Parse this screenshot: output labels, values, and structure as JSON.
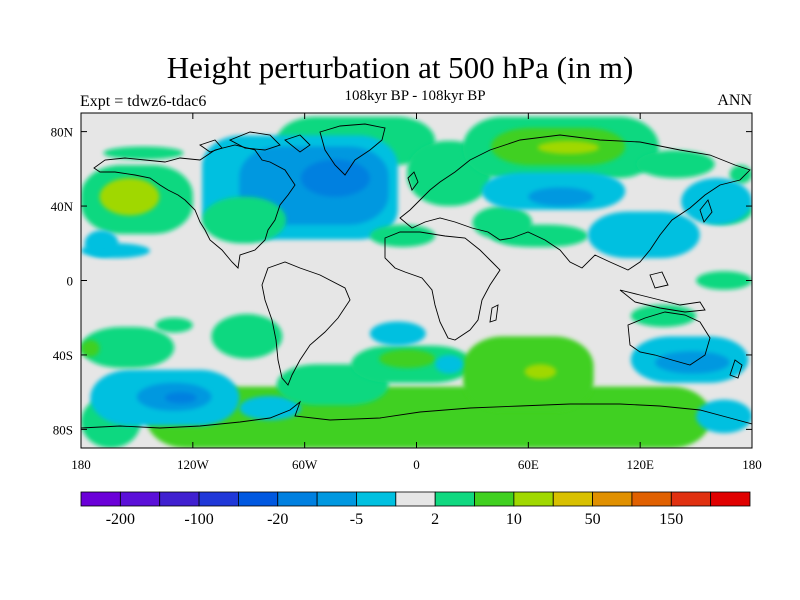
{
  "header": {
    "title": "Height perturbation at 500 hPa (in m)",
    "experiment": "Expt = tdwz6-tdac6",
    "period": "108kyr BP - 108kyr BP",
    "season": "ANN"
  },
  "map": {
    "projection": "cylindrical-equidistant",
    "lon_range": [
      -180,
      180
    ],
    "lat_range": [
      -90,
      90
    ],
    "lon_ticks": [
      {
        "value": -180,
        "label": "180"
      },
      {
        "value": -120,
        "label": "120W"
      },
      {
        "value": -60,
        "label": "60W"
      },
      {
        "value": 0,
        "label": "0"
      },
      {
        "value": 60,
        "label": "60E"
      },
      {
        "value": 120,
        "label": "120E"
      },
      {
        "value": 180,
        "label": "180"
      }
    ],
    "lat_ticks": [
      {
        "value": 80,
        "label": "80N"
      },
      {
        "value": 40,
        "label": "40N"
      },
      {
        "value": 0,
        "label": "0"
      },
      {
        "value": -40,
        "label": "40S"
      },
      {
        "value": -80,
        "label": "80S"
      }
    ],
    "background_color": "#e6e6e6",
    "regions": [
      {
        "lon": [
          -145,
          158
        ],
        "lat": [
          -90,
          -57
        ],
        "color": "#40d020",
        "note": "Antarctic positive"
      },
      {
        "lon": [
          -180,
          -148
        ],
        "lat": [
          -90,
          -62
        ],
        "color": "#10d880"
      },
      {
        "lon": [
          -175,
          -95
        ],
        "lat": [
          -78,
          -48
        ],
        "color": "#00c0e0"
      },
      {
        "lon": [
          -150,
          -110
        ],
        "lat": [
          -70,
          -55
        ],
        "color": "#0098e0"
      },
      {
        "lon": [
          -135,
          -118
        ],
        "lat": [
          -66,
          -60
        ],
        "color": "#0080e0"
      },
      {
        "lon": [
          -95,
          -62
        ],
        "lat": [
          -75,
          -62
        ],
        "color": "#00c0e0"
      },
      {
        "lon": [
          150,
          180
        ],
        "lat": [
          -82,
          -64
        ],
        "color": "#00c0e0"
      },
      {
        "lon": [
          -180,
          -130
        ],
        "lat": [
          -47,
          -25
        ],
        "color": "#10d880"
      },
      {
        "lon": [
          -180,
          -170
        ],
        "lat": [
          -41,
          -32
        ],
        "color": "#40d020"
      },
      {
        "lon": [
          -110,
          -72
        ],
        "lat": [
          -42,
          -18
        ],
        "color": "#10d880"
      },
      {
        "lon": [
          -140,
          -120
        ],
        "lat": [
          -28,
          -20
        ],
        "color": "#10d880"
      },
      {
        "lon": [
          -75,
          -15
        ],
        "lat": [
          -67,
          -45
        ],
        "color": "#10d880"
      },
      {
        "lon": [
          -35,
          30
        ],
        "lat": [
          -55,
          -35
        ],
        "color": "#10d880"
      },
      {
        "lon": [
          -20,
          10
        ],
        "lat": [
          -47,
          -37
        ],
        "color": "#40d020"
      },
      {
        "lon": [
          25,
          95
        ],
        "lat": [
          -70,
          -30
        ],
        "color": "#40d020"
      },
      {
        "lon": [
          58,
          75
        ],
        "lat": [
          -53,
          -45
        ],
        "color": "#a0d800"
      },
      {
        "lon": [
          10,
          25
        ],
        "lat": [
          -50,
          -40
        ],
        "color": "#00c0e0"
      },
      {
        "lon": [
          -25,
          5
        ],
        "lat": [
          -35,
          -22
        ],
        "color": "#00c0e0"
      },
      {
        "lon": [
          115,
          178
        ],
        "lat": [
          -55,
          -30
        ],
        "color": "#00c0e0"
      },
      {
        "lon": [
          128,
          168
        ],
        "lat": [
          -50,
          -38
        ],
        "color": "#0098e0"
      },
      {
        "lon": [
          115,
          150
        ],
        "lat": [
          -25,
          -13
        ],
        "color": "#10d880"
      },
      {
        "lon": [
          150,
          180
        ],
        "lat": [
          -5,
          5
        ],
        "color": "#10d880"
      },
      {
        "lon": [
          -168,
          -125
        ],
        "lat": [
          65,
          72
        ],
        "color": "#10d880"
      },
      {
        "lon": [
          -75,
          10
        ],
        "lat": [
          62,
          88
        ],
        "color": "#10d880"
      },
      {
        "lon": [
          -180,
          -120
        ],
        "lat": [
          25,
          62
        ],
        "color": "#10d880"
      },
      {
        "lon": [
          -170,
          -138
        ],
        "lat": [
          35,
          55
        ],
        "color": "#a0d800"
      },
      {
        "lon": [
          -178,
          -160
        ],
        "lat": [
          13,
          27
        ],
        "color": "#00c0e0"
      },
      {
        "lon": [
          -180,
          -143
        ],
        "lat": [
          12,
          20
        ],
        "color": "#00c0e0"
      },
      {
        "lon": [
          -115,
          -10
        ],
        "lat": [
          22,
          78
        ],
        "color": "#00c0e0"
      },
      {
        "lon": [
          -95,
          -15
        ],
        "lat": [
          30,
          72
        ],
        "color": "#0098e0"
      },
      {
        "lon": [
          -62,
          -25
        ],
        "lat": [
          45,
          65
        ],
        "color": "#0080e0"
      },
      {
        "lon": [
          -115,
          -70
        ],
        "lat": [
          20,
          45
        ],
        "color": "#10d880"
      },
      {
        "lon": [
          -25,
          10
        ],
        "lat": [
          18,
          30
        ],
        "color": "#10d880"
      },
      {
        "lon": [
          -5,
          40
        ],
        "lat": [
          40,
          75
        ],
        "color": "#10d880"
      },
      {
        "lon": [
          25,
          130
        ],
        "lat": [
          55,
          88
        ],
        "color": "#10d880"
      },
      {
        "lon": [
          40,
          112
        ],
        "lat": [
          62,
          82
        ],
        "color": "#40d020"
      },
      {
        "lon": [
          65,
          98
        ],
        "lat": [
          68,
          75
        ],
        "color": "#a0d800"
      },
      {
        "lon": [
          118,
          160
        ],
        "lat": [
          55,
          70
        ],
        "color": "#10d880"
      },
      {
        "lon": [
          168,
          180
        ],
        "lat": [
          52,
          62
        ],
        "color": "#10d880"
      },
      {
        "lon": [
          150,
          180
        ],
        "lat": [
          30,
          45
        ],
        "color": "#10d880"
      },
      {
        "lon": [
          40,
          92
        ],
        "lat": [
          18,
          30
        ],
        "color": "#10d880"
      },
      {
        "lon": [
          30,
          62
        ],
        "lat": [
          22,
          40
        ],
        "color": "#10d880"
      },
      {
        "lon": [
          35,
          112
        ],
        "lat": [
          38,
          58
        ],
        "color": "#00c0e0"
      },
      {
        "lon": [
          60,
          95
        ],
        "lat": [
          40,
          50
        ],
        "color": "#0098e0"
      },
      {
        "lon": [
          92,
          152
        ],
        "lat": [
          12,
          37
        ],
        "color": "#00c0e0"
      },
      {
        "lon": [
          142,
          180
        ],
        "lat": [
          30,
          55
        ],
        "color": "#00c0e0"
      }
    ]
  },
  "colorbar": {
    "colors": [
      "#6b00d8",
      "#5b10d8",
      "#4020d0",
      "#2038d8",
      "#0058e0",
      "#0080e0",
      "#0098e0",
      "#00c0e0",
      "#e6e6e6",
      "#10d880",
      "#40d020",
      "#a0d800",
      "#d8c000",
      "#e09000",
      "#e06000",
      "#e03010",
      "#e00000"
    ],
    "labels": [
      {
        "boundary": 1,
        "text": "-200"
      },
      {
        "boundary": 3,
        "text": "-100"
      },
      {
        "boundary": 5,
        "text": "-20"
      },
      {
        "boundary": 7,
        "text": "-5"
      },
      {
        "boundary": 9,
        "text": "2"
      },
      {
        "boundary": 11,
        "text": "10"
      },
      {
        "boundary": 13,
        "text": "50"
      },
      {
        "boundary": 15,
        "text": "150"
      }
    ]
  }
}
